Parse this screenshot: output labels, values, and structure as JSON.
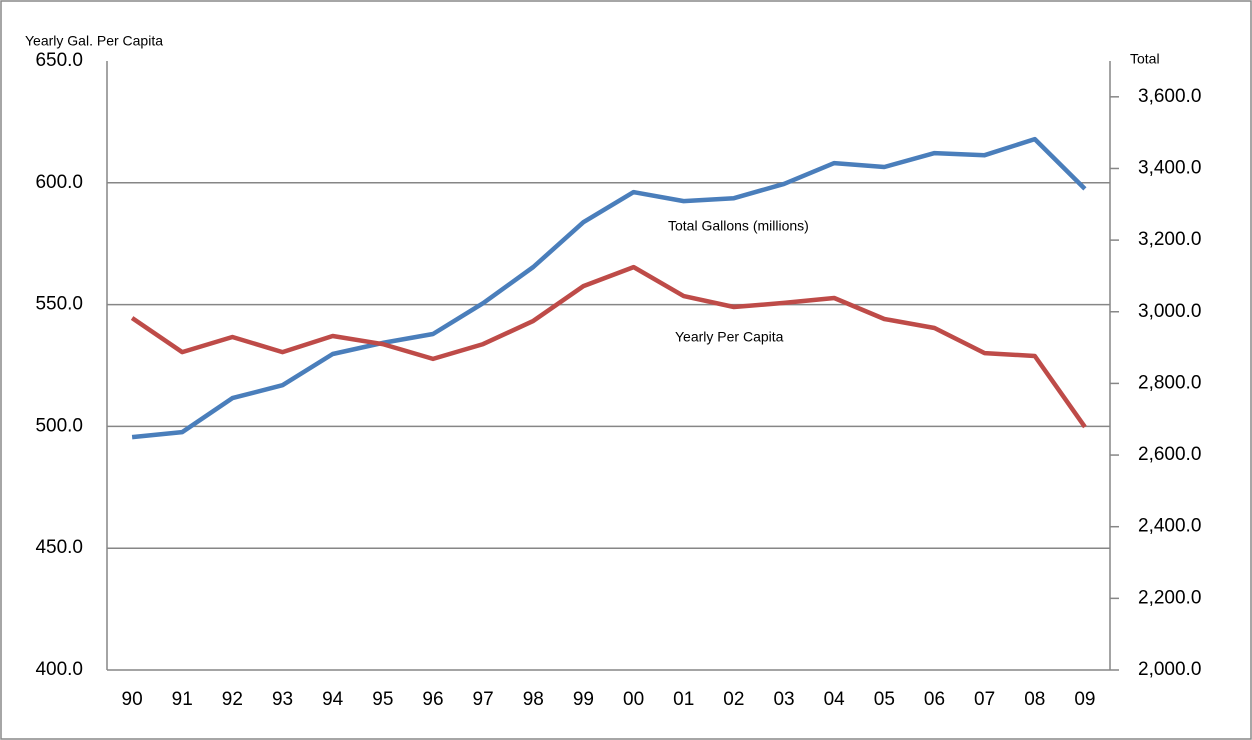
{
  "chart_data": {
    "type": "line",
    "y_label": "Yearly Gal. Per  Capita",
    "y2_label": "Total",
    "categories": [
      "90",
      "91",
      "92",
      "93",
      "94",
      "95",
      "96",
      "97",
      "98",
      "99",
      "00",
      "01",
      "02",
      "03",
      "04",
      "05",
      "06",
      "07",
      "08",
      "09"
    ],
    "series": [
      {
        "name": "Total Gallons (millions)",
        "color": "#4a7ebb",
        "axis": "y2",
        "values": [
          2650,
          2664,
          2759,
          2795,
          2882,
          2913,
          2938,
          3024,
          3125,
          3250,
          3334,
          3309,
          3317,
          3357,
          3415,
          3404,
          3443,
          3437,
          3482,
          3343
        ]
      },
      {
        "name": "Yearly Per Capita",
        "color": "#be4b48",
        "values": [
          544.5,
          530.5,
          536.7,
          530.5,
          537.1,
          533.8,
          527.7,
          533.8,
          543.3,
          557.6,
          565.4,
          553.5,
          549.0,
          550.7,
          552.7,
          544.1,
          540.4,
          530.1,
          528.9,
          499.8
        ]
      }
    ],
    "ylim": [
      400,
      650
    ],
    "yticks": [
      {
        "value": 400,
        "label": "400.0"
      },
      {
        "value": 450,
        "label": "450.0"
      },
      {
        "value": 500,
        "label": "500.0"
      },
      {
        "value": 550,
        "label": "550.0"
      },
      {
        "value": 600,
        "label": "600.0"
      },
      {
        "value": 650,
        "label": "650.0"
      }
    ],
    "y2lim": [
      2000,
      3700
    ],
    "y2ticks": [
      {
        "value": 2000,
        "label": "2,000.0"
      },
      {
        "value": 2200,
        "label": "2,200.0"
      },
      {
        "value": 2400,
        "label": "2,400.0"
      },
      {
        "value": 2600,
        "label": "2,600.0"
      },
      {
        "value": 2800,
        "label": "2,800.0"
      },
      {
        "value": 3000,
        "label": "3,000.0"
      },
      {
        "value": 3200,
        "label": "3,200.0"
      },
      {
        "value": 3400,
        "label": "3,400.0"
      },
      {
        "value": 3600,
        "label": "3,600.0"
      }
    ],
    "grid": true
  }
}
